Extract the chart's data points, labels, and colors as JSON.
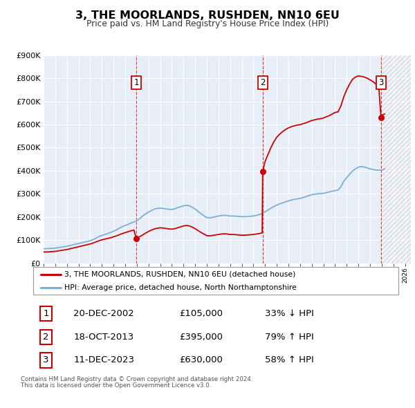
{
  "title": "3, THE MOORLANDS, RUSHDEN, NN10 6EU",
  "subtitle": "Price paid vs. HM Land Registry's House Price Index (HPI)",
  "ylim": [
    0,
    900000
  ],
  "yticks": [
    0,
    100000,
    200000,
    300000,
    400000,
    500000,
    600000,
    700000,
    800000,
    900000
  ],
  "ytick_labels": [
    "£0",
    "£100K",
    "£200K",
    "£300K",
    "£400K",
    "£500K",
    "£600K",
    "£700K",
    "£800K",
    "£900K"
  ],
  "xlim_start": 1995.0,
  "xlim_end": 2026.5,
  "background_color": "#ffffff",
  "plot_bg_color": "#e8eef8",
  "grid_color": "#ffffff",
  "sale_color": "#cc0000",
  "hpi_color": "#7ab0d4",
  "sale_label": "3, THE MOORLANDS, RUSHDEN, NN10 6EU (detached house)",
  "hpi_label": "HPI: Average price, detached house, North Northamptonshire",
  "transactions": [
    {
      "num": 1,
      "date_label": "20-DEC-2002",
      "price": 105000,
      "pct": "33%",
      "dir": "↓",
      "x": 2002.96
    },
    {
      "num": 2,
      "date_label": "18-OCT-2013",
      "price": 395000,
      "pct": "79%",
      "dir": "↑",
      "x": 2013.79
    },
    {
      "num": 3,
      "date_label": "11-DEC-2023",
      "price": 630000,
      "pct": "58%",
      "dir": "↑",
      "x": 2023.94
    }
  ],
  "footnote1": "Contains HM Land Registry data © Crown copyright and database right 2024.",
  "footnote2": "This data is licensed under the Open Government Licence v3.0.",
  "hpi_data_x": [
    1995.0,
    1995.25,
    1995.5,
    1995.75,
    1996.0,
    1996.25,
    1996.5,
    1996.75,
    1997.0,
    1997.25,
    1997.5,
    1997.75,
    1998.0,
    1998.25,
    1998.5,
    1998.75,
    1999.0,
    1999.25,
    1999.5,
    1999.75,
    2000.0,
    2000.25,
    2000.5,
    2000.75,
    2001.0,
    2001.25,
    2001.5,
    2001.75,
    2002.0,
    2002.25,
    2002.5,
    2002.75,
    2003.0,
    2003.25,
    2003.5,
    2003.75,
    2004.0,
    2004.25,
    2004.5,
    2004.75,
    2005.0,
    2005.25,
    2005.5,
    2005.75,
    2006.0,
    2006.25,
    2006.5,
    2006.75,
    2007.0,
    2007.25,
    2007.5,
    2007.75,
    2008.0,
    2008.25,
    2008.5,
    2008.75,
    2009.0,
    2009.25,
    2009.5,
    2009.75,
    2010.0,
    2010.25,
    2010.5,
    2010.75,
    2011.0,
    2011.25,
    2011.5,
    2011.75,
    2012.0,
    2012.25,
    2012.5,
    2012.75,
    2013.0,
    2013.25,
    2013.5,
    2013.75,
    2014.0,
    2014.25,
    2014.5,
    2014.75,
    2015.0,
    2015.25,
    2015.5,
    2015.75,
    2016.0,
    2016.25,
    2016.5,
    2016.75,
    2017.0,
    2017.25,
    2017.5,
    2017.75,
    2018.0,
    2018.25,
    2018.5,
    2018.75,
    2019.0,
    2019.25,
    2019.5,
    2019.75,
    2020.0,
    2020.25,
    2020.5,
    2020.75,
    2021.0,
    2021.25,
    2021.5,
    2021.75,
    2022.0,
    2022.25,
    2022.5,
    2022.75,
    2023.0,
    2023.25,
    2023.5,
    2023.75,
    2024.0,
    2024.25
  ],
  "hpi_data_y": [
    62000,
    63000,
    63500,
    64000,
    65000,
    67000,
    69000,
    71000,
    73000,
    76000,
    79000,
    82000,
    85000,
    88000,
    91000,
    94000,
    97000,
    102000,
    108000,
    115000,
    120000,
    124000,
    128000,
    133000,
    138000,
    144000,
    151000,
    158000,
    163000,
    168000,
    174000,
    178000,
    183000,
    193000,
    204000,
    213000,
    221000,
    228000,
    234000,
    237000,
    238000,
    237000,
    235000,
    233000,
    232000,
    235000,
    240000,
    244000,
    248000,
    250000,
    248000,
    242000,
    234000,
    224000,
    214000,
    205000,
    197000,
    196000,
    198000,
    201000,
    204000,
    206000,
    207000,
    206000,
    204000,
    204000,
    203000,
    202000,
    201000,
    201000,
    202000,
    203000,
    204000,
    207000,
    210000,
    215000,
    222000,
    230000,
    238000,
    245000,
    251000,
    256000,
    261000,
    265000,
    269000,
    273000,
    276000,
    278000,
    280000,
    284000,
    288000,
    292000,
    296000,
    298000,
    300000,
    301000,
    302000,
    305000,
    308000,
    311000,
    314000,
    316000,
    330000,
    355000,
    370000,
    385000,
    398000,
    408000,
    415000,
    418000,
    416000,
    412000,
    408000,
    405000,
    403000,
    402000,
    403000,
    408000
  ],
  "sale_data_x": [
    1995.0,
    1995.25,
    1995.5,
    1995.75,
    1996.0,
    1996.25,
    1996.5,
    1996.75,
    1997.0,
    1997.25,
    1997.5,
    1997.75,
    1998.0,
    1998.25,
    1998.5,
    1998.75,
    1999.0,
    1999.25,
    1999.5,
    1999.75,
    2000.0,
    2000.25,
    2000.5,
    2000.75,
    2001.0,
    2001.25,
    2001.5,
    2001.75,
    2002.0,
    2002.25,
    2002.5,
    2002.75,
    2002.96,
    2003.0,
    2003.25,
    2003.5,
    2003.75,
    2004.0,
    2004.25,
    2004.5,
    2004.75,
    2005.0,
    2005.25,
    2005.5,
    2005.75,
    2006.0,
    2006.25,
    2006.5,
    2006.75,
    2007.0,
    2007.25,
    2007.5,
    2007.75,
    2008.0,
    2008.25,
    2008.5,
    2008.75,
    2009.0,
    2009.25,
    2009.5,
    2009.75,
    2010.0,
    2010.25,
    2010.5,
    2010.75,
    2011.0,
    2011.25,
    2011.5,
    2011.75,
    2012.0,
    2012.25,
    2012.5,
    2012.75,
    2013.0,
    2013.25,
    2013.5,
    2013.75,
    2013.79,
    2014.0,
    2014.25,
    2014.5,
    2014.75,
    2015.0,
    2015.25,
    2015.5,
    2015.75,
    2016.0,
    2016.25,
    2016.5,
    2016.75,
    2017.0,
    2017.25,
    2017.5,
    2017.75,
    2018.0,
    2018.25,
    2018.5,
    2018.75,
    2019.0,
    2019.25,
    2019.5,
    2019.75,
    2020.0,
    2020.25,
    2020.5,
    2020.75,
    2021.0,
    2021.25,
    2021.5,
    2021.75,
    2022.0,
    2022.25,
    2022.5,
    2022.75,
    2023.0,
    2023.25,
    2023.5,
    2023.75,
    2023.94,
    2024.0,
    2024.25
  ],
  "sale_data_y": [
    48000,
    48500,
    49000,
    50000,
    51000,
    53000,
    55000,
    57000,
    59000,
    62000,
    65000,
    68000,
    71000,
    74000,
    77000,
    80000,
    83000,
    87000,
    92000,
    97000,
    101000,
    104000,
    107000,
    110000,
    114000,
    118000,
    123000,
    128000,
    132000,
    136000,
    140000,
    143000,
    105000,
    108000,
    115000,
    122000,
    130000,
    137000,
    143000,
    148000,
    151000,
    153000,
    152000,
    150000,
    148000,
    147000,
    149000,
    153000,
    157000,
    161000,
    163000,
    161000,
    156000,
    149000,
    141000,
    133000,
    126000,
    119000,
    118000,
    120000,
    122000,
    124000,
    126000,
    127000,
    126000,
    124000,
    124000,
    123000,
    122000,
    121000,
    121000,
    122000,
    123000,
    124000,
    126000,
    128000,
    131000,
    395000,
    440000,
    470000,
    500000,
    525000,
    545000,
    558000,
    569000,
    578000,
    585000,
    590000,
    594000,
    597000,
    599000,
    603000,
    607000,
    612000,
    617000,
    620000,
    623000,
    625000,
    628000,
    633000,
    638000,
    645000,
    652000,
    654000,
    680000,
    720000,
    750000,
    775000,
    795000,
    805000,
    810000,
    808000,
    805000,
    800000,
    793000,
    785000,
    775000,
    763000,
    630000,
    640000,
    645000
  ]
}
